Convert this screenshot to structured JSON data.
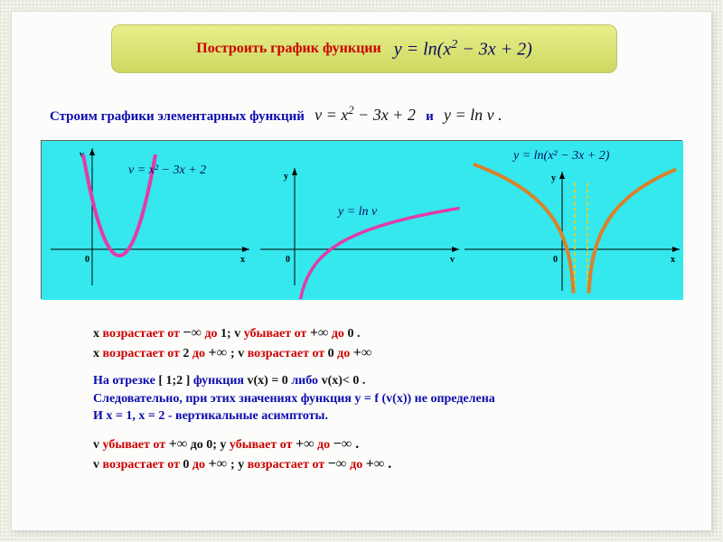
{
  "page": {
    "bg_dot_color": "#d9ddc8",
    "bg_base": "#f1f2ea"
  },
  "title": {
    "gradient_top": "#e8ef8c",
    "gradient_bottom": "#cdd860",
    "label": "Построить  график  функции",
    "formula_html": "y = ln(x<sup>2</sup> − 3x + 2)"
  },
  "line1": {
    "prefix": "Строим  графики  элементарных  функций",
    "f1_html": "v = x<sup>2</sup> − 3x + 2",
    "mid": "и",
    "f2_html": "y = ln v ."
  },
  "panel": {
    "bg": "#34e8ee",
    "parabola_color": "#e63aa6",
    "ln_color": "#e63aa6",
    "composite_color": "#d9822b",
    "asymptote_color": "#d7d03a",
    "eq1_html": "v = x² − 3x + 2",
    "eq2_html": "y = ln v",
    "eq3_html": "y = ln(x² − 3x + 2)",
    "origin_label": "0",
    "axis_x1": "x",
    "axis_y1": "v",
    "axis_x2": "v",
    "axis_y2": "y",
    "axis_x3": "x",
    "axis_y3": "y"
  },
  "notes": {
    "l1": {
      "a": "x",
      "b": " возрастает от  ",
      "c": "−∞",
      "d": "  до ",
      "e": "1",
      "f": ";  v",
      "g": " убывает  от  ",
      "h": "+∞",
      "i": "  до ",
      "j": " 0",
      "k": " ."
    },
    "l2": {
      "a": "x",
      "b": " возрастает  от ",
      "c": " 2 ",
      "d": " до ",
      "e": " +∞ ",
      "f": ";  v",
      "g": " возрастает  от ",
      "h": " 0 ",
      "i": " до ",
      "j": " +∞"
    },
    "l3": {
      "a": "На  отрезке ",
      "b": " [ 1;2 ] ",
      "c": " функция ",
      "d": " v(x) =  0 ",
      "e": " либо ",
      "f": "  v(x)< 0  ."
    },
    "l4": "Следовательно, при этих значениях функция  y = f (v(x))  не определена",
    "l5": "И    x = 1,    x = 2    -   вертикальные  асимптоты.",
    "l6": {
      "a": "v",
      "b": " убывает от  ",
      "c": "+∞",
      "d": "  до  0;   y",
      "e": " убывает  от  ",
      "f": "+∞",
      "g": "  до ",
      "h": " −∞  ."
    },
    "l7": {
      "a": "v",
      "b": " возрастает  от ",
      "c": " 0 ",
      "d": " до ",
      "e": " +∞ ",
      "f": " ;   y",
      "g": " возрастает  от ",
      "h": " −∞ ",
      "i": " до ",
      "j": " +∞  ."
    }
  }
}
